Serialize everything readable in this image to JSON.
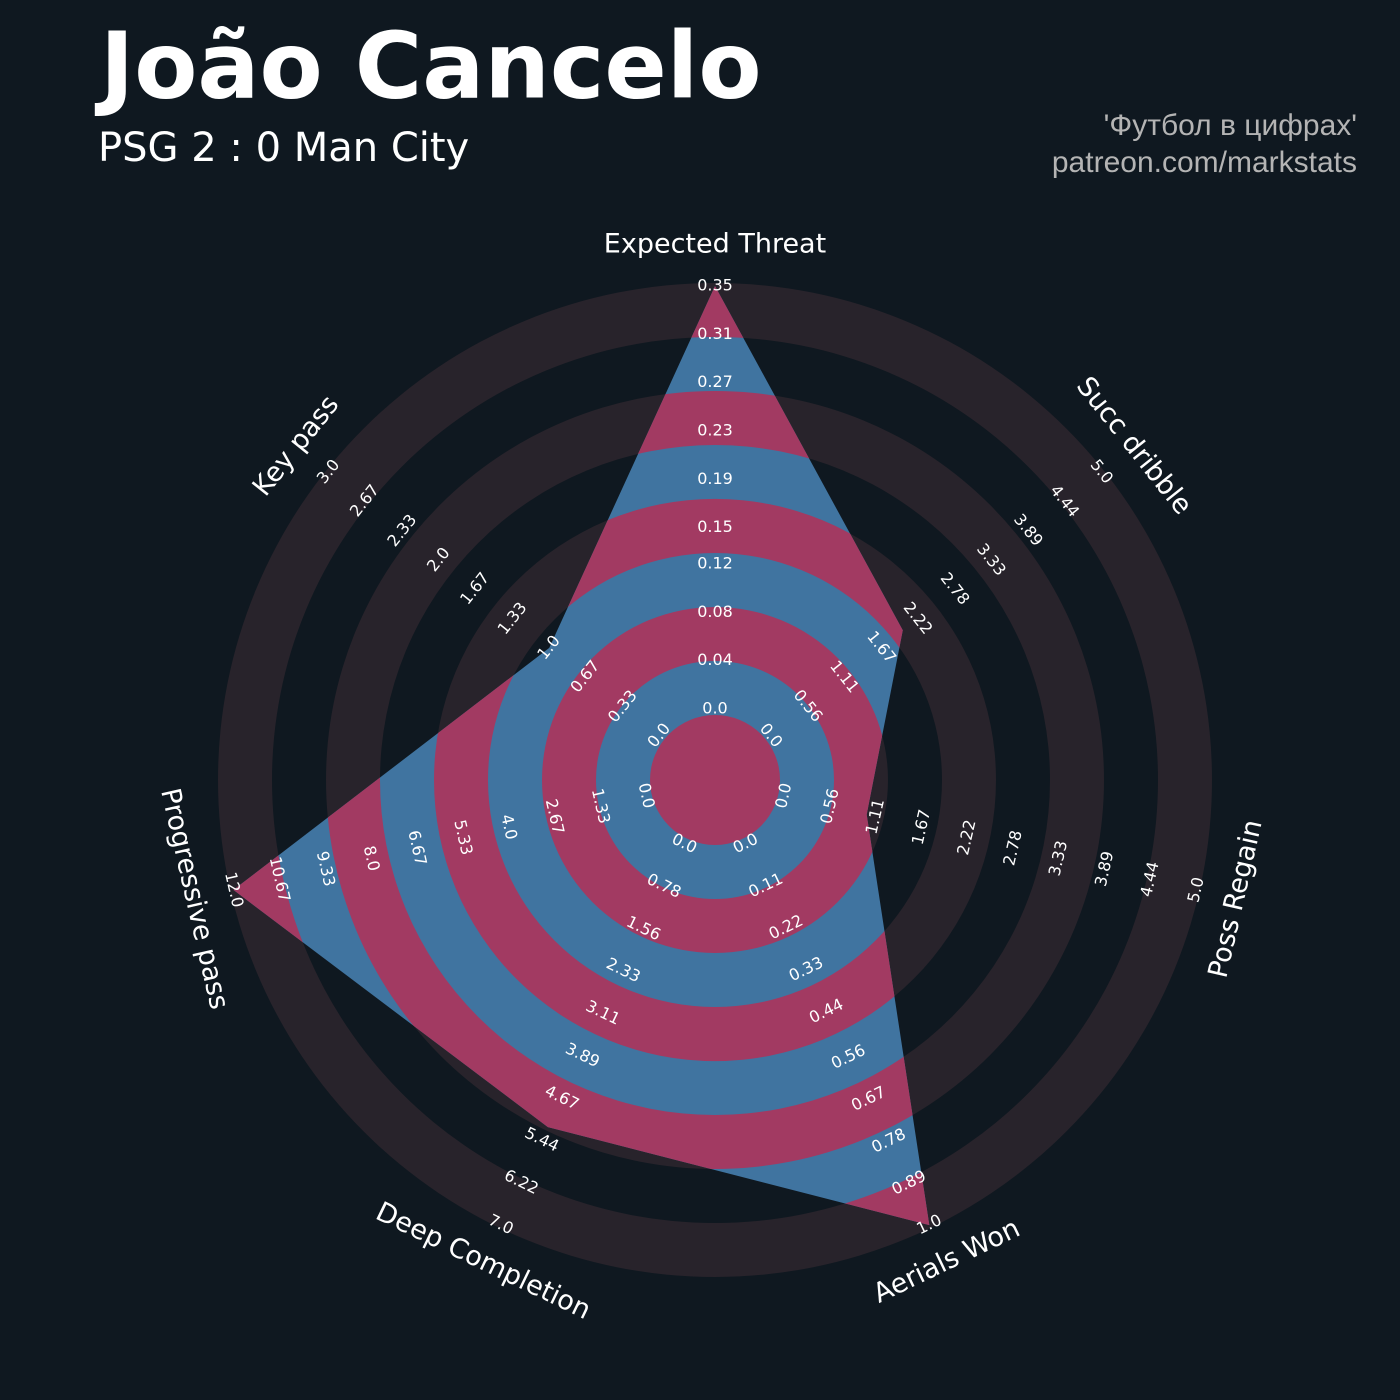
{
  "chart_data": {
    "type": "radar",
    "title": "João Cancelo",
    "subtitle": "PSG 2 : 0 Man City",
    "credits": [
      "'Футбол в цифрах'",
      "patreon.com/markstats"
    ],
    "categories": [
      "Expected Threat",
      "Succ dribble",
      "Poss Regain",
      "Aerials Won",
      "Deep Completion",
      "Progressive pass",
      "Key pass"
    ],
    "values": [
      0.35,
      2.0,
      1.0,
      1.0,
      5.2,
      12.0,
      1.0
    ],
    "ranges": [
      [
        0,
        0.35
      ],
      [
        0,
        5
      ],
      [
        0,
        5
      ],
      [
        0,
        1
      ],
      [
        0,
        7
      ],
      [
        0,
        12
      ],
      [
        0,
        3
      ]
    ],
    "ticks": [
      [
        {
          "value": 0,
          "label": "0.0"
        },
        0.04,
        0.08,
        0.12,
        0.15,
        0.19,
        0.23,
        0.27,
        0.31,
        0.35
      ],
      [
        {
          "value": 0,
          "label": "0.0"
        },
        0.56,
        1.11,
        1.67,
        2.22,
        2.78,
        3.33,
        3.89,
        4.44,
        {
          "value": 5,
          "label": "5.0"
        }
      ],
      [
        {
          "value": 0,
          "label": "0.0"
        },
        0.56,
        1.11,
        1.67,
        2.22,
        2.78,
        3.33,
        3.89,
        4.44,
        {
          "value": 5,
          "label": "5.0"
        }
      ],
      [
        {
          "value": 0,
          "label": "0.0"
        },
        0.11,
        0.22,
        0.33,
        0.44,
        0.56,
        0.67,
        0.78,
        0.89,
        {
          "value": 1,
          "label": "1.0"
        }
      ],
      [
        {
          "value": 0,
          "label": "0.0"
        },
        0.78,
        1.56,
        2.33,
        3.11,
        3.89,
        4.67,
        5.44,
        6.22,
        {
          "value": 7,
          "label": "7.0"
        }
      ],
      [
        {
          "value": 0,
          "label": "0.0"
        },
        1.33,
        2.67,
        {
          "value": 4,
          "label": "4.0"
        },
        5.33,
        6.67,
        {
          "value": 8,
          "label": "8.0"
        },
        9.33,
        10.67,
        {
          "value": 12,
          "label": "12.0"
        }
      ],
      [
        {
          "value": 0,
          "label": "0.0"
        },
        0.33,
        0.67,
        {
          "value": 1,
          "label": "1.0"
        },
        1.33,
        1.67,
        {
          "value": 2,
          "label": "2.0"
        },
        2.33,
        2.67,
        {
          "value": 3,
          "label": "3.0"
        }
      ]
    ],
    "color": "#4074a0",
    "ring_color": "#28232b",
    "ring_fill_color": "#a23a62",
    "background": "#0f1820"
  }
}
